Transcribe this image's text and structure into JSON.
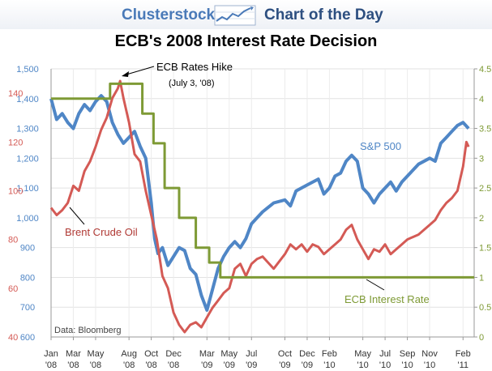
{
  "header": {
    "brand": "Clusterstock",
    "tagline": "Chart of the Day",
    "icon": "trend-chart-icon"
  },
  "colors": {
    "sp500": "#4f86c6",
    "brent": "#d45a55",
    "ecb": "#7e9a35",
    "brand": "#4a7ab8"
  },
  "chart_data": {
    "type": "line",
    "title": "ECB's 2008 Interest Rate Decision",
    "source": "Data: Bloomberg",
    "x_ticks": [
      {
        "t": 0,
        "m": "Jan",
        "y": "'08"
      },
      {
        "t": 2,
        "m": "Mar",
        "y": "'08"
      },
      {
        "t": 4,
        "m": "May",
        "y": "'08"
      },
      {
        "t": 7,
        "m": "Aug",
        "y": "'08"
      },
      {
        "t": 9,
        "m": "Oct",
        "y": "'08"
      },
      {
        "t": 11,
        "m": "Dec",
        "y": "'08"
      },
      {
        "t": 14,
        "m": "Mar",
        "y": "'09"
      },
      {
        "t": 16,
        "m": "May",
        "y": "'09"
      },
      {
        "t": 18,
        "m": "Jul",
        "y": "'09"
      },
      {
        "t": 21,
        "m": "Oct",
        "y": "'09"
      },
      {
        "t": 23,
        "m": "Dec",
        "y": "'09"
      },
      {
        "t": 25,
        "m": "Feb",
        "y": "'10"
      },
      {
        "t": 28,
        "m": "May",
        "y": "'10"
      },
      {
        "t": 30,
        "m": "Jul",
        "y": "'10"
      },
      {
        "t": 32,
        "m": "Sep",
        "y": "'10"
      },
      {
        "t": 34,
        "m": "Nov",
        "y": "'10"
      },
      {
        "t": 37,
        "m": "Feb",
        "y": "'11"
      }
    ],
    "x_range": [
      0,
      38
    ],
    "left_outer_axis": {
      "series": "S&P 500",
      "range": [
        600,
        1500
      ],
      "ticks": [
        "600",
        "700",
        "800",
        "900",
        "1,000",
        "1,100",
        "1,200",
        "1,300",
        "1,400",
        "1,500"
      ]
    },
    "left_inner_axis": {
      "series": "Brent Crude Oil",
      "range": [
        40,
        150
      ],
      "ticks": [
        "40",
        "60",
        "80",
        "100",
        "120",
        "140"
      ]
    },
    "right_axis": {
      "series": "ECB Interest Rate",
      "range": [
        0,
        4.5
      ],
      "ticks": [
        "0",
        "0.5",
        "1",
        "1.5",
        "2",
        "2.5",
        "3",
        "3.5",
        "4",
        "4.5"
      ]
    },
    "series": [
      {
        "name": "S&P 500",
        "axis": "left_outer",
        "points": [
          [
            0,
            1400
          ],
          [
            0.5,
            1330
          ],
          [
            1,
            1350
          ],
          [
            1.5,
            1320
          ],
          [
            2,
            1300
          ],
          [
            2.5,
            1350
          ],
          [
            3,
            1380
          ],
          [
            3.5,
            1360
          ],
          [
            4,
            1390
          ],
          [
            4.5,
            1410
          ],
          [
            5,
            1390
          ],
          [
            5.5,
            1320
          ],
          [
            6,
            1280
          ],
          [
            6.5,
            1250
          ],
          [
            7,
            1270
          ],
          [
            7.5,
            1290
          ],
          [
            8,
            1240
          ],
          [
            8.5,
            1200
          ],
          [
            9,
            1050
          ],
          [
            9.3,
            930
          ],
          [
            9.6,
            880
          ],
          [
            10,
            900
          ],
          [
            10.5,
            840
          ],
          [
            11,
            870
          ],
          [
            11.5,
            900
          ],
          [
            12,
            890
          ],
          [
            12.5,
            830
          ],
          [
            13,
            810
          ],
          [
            13.5,
            740
          ],
          [
            14,
            690
          ],
          [
            14.5,
            760
          ],
          [
            15,
            830
          ],
          [
            15.5,
            870
          ],
          [
            16,
            900
          ],
          [
            16.5,
            920
          ],
          [
            17,
            900
          ],
          [
            17.5,
            930
          ],
          [
            18,
            980
          ],
          [
            18.5,
            1000
          ],
          [
            19,
            1020
          ],
          [
            20,
            1050
          ],
          [
            21,
            1060
          ],
          [
            21.5,
            1040
          ],
          [
            22,
            1090
          ],
          [
            23,
            1110
          ],
          [
            24,
            1130
          ],
          [
            24.5,
            1080
          ],
          [
            25,
            1100
          ],
          [
            25.5,
            1140
          ],
          [
            26,
            1150
          ],
          [
            26.5,
            1190
          ],
          [
            27,
            1210
          ],
          [
            27.5,
            1190
          ],
          [
            28,
            1100
          ],
          [
            28.5,
            1080
          ],
          [
            29,
            1050
          ],
          [
            29.5,
            1080
          ],
          [
            30,
            1100
          ],
          [
            30.5,
            1120
          ],
          [
            31,
            1090
          ],
          [
            31.5,
            1120
          ],
          [
            32,
            1140
          ],
          [
            33,
            1180
          ],
          [
            34,
            1200
          ],
          [
            34.5,
            1190
          ],
          [
            35,
            1250
          ],
          [
            35.5,
            1270
          ],
          [
            36,
            1290
          ],
          [
            36.5,
            1310
          ],
          [
            37,
            1320
          ],
          [
            37.5,
            1300
          ]
        ]
      },
      {
        "name": "Brent Crude Oil",
        "axis": "left_inner",
        "points": [
          [
            0,
            93
          ],
          [
            0.5,
            90
          ],
          [
            1,
            92
          ],
          [
            1.5,
            95
          ],
          [
            2,
            102
          ],
          [
            2.5,
            100
          ],
          [
            3,
            108
          ],
          [
            3.5,
            112
          ],
          [
            4,
            118
          ],
          [
            4.5,
            125
          ],
          [
            5,
            130
          ],
          [
            5.5,
            138
          ],
          [
            6,
            142
          ],
          [
            6.2,
            145
          ],
          [
            6.5,
            138
          ],
          [
            7,
            128
          ],
          [
            7.5,
            115
          ],
          [
            8,
            112
          ],
          [
            8.5,
            100
          ],
          [
            9,
            90
          ],
          [
            9.5,
            80
          ],
          [
            10,
            65
          ],
          [
            10.5,
            60
          ],
          [
            11,
            50
          ],
          [
            11.5,
            45
          ],
          [
            12,
            42
          ],
          [
            12.5,
            45
          ],
          [
            13,
            46
          ],
          [
            13.5,
            44
          ],
          [
            14,
            48
          ],
          [
            14.5,
            52
          ],
          [
            15,
            55
          ],
          [
            15.5,
            58
          ],
          [
            16,
            60
          ],
          [
            16.5,
            68
          ],
          [
            17,
            70
          ],
          [
            17.5,
            65
          ],
          [
            18,
            70
          ],
          [
            18.5,
            72
          ],
          [
            19,
            73
          ],
          [
            20,
            68
          ],
          [
            21,
            74
          ],
          [
            21.5,
            78
          ],
          [
            22,
            76
          ],
          [
            22.5,
            78
          ],
          [
            23,
            75
          ],
          [
            23.5,
            78
          ],
          [
            24,
            77
          ],
          [
            24.5,
            74
          ],
          [
            25,
            76
          ],
          [
            25.5,
            78
          ],
          [
            26,
            80
          ],
          [
            26.5,
            84
          ],
          [
            27,
            86
          ],
          [
            27.5,
            80
          ],
          [
            28,
            76
          ],
          [
            28.5,
            72
          ],
          [
            29,
            76
          ],
          [
            29.5,
            75
          ],
          [
            30,
            78
          ],
          [
            30.5,
            74
          ],
          [
            31,
            76
          ],
          [
            31.5,
            78
          ],
          [
            32,
            80
          ],
          [
            33,
            82
          ],
          [
            34,
            86
          ],
          [
            34.5,
            88
          ],
          [
            35,
            92
          ],
          [
            35.5,
            95
          ],
          [
            36,
            97
          ],
          [
            36.5,
            100
          ],
          [
            37,
            110
          ],
          [
            37.3,
            120
          ],
          [
            37.5,
            118
          ]
        ]
      },
      {
        "name": "ECB Interest Rate",
        "axis": "right",
        "points": [
          [
            0,
            4
          ],
          [
            5.3,
            4
          ],
          [
            5.3,
            4.25
          ],
          [
            8.2,
            4.25
          ],
          [
            8.2,
            3.75
          ],
          [
            9.2,
            3.75
          ],
          [
            9.2,
            3.25
          ],
          [
            10.2,
            3.25
          ],
          [
            10.2,
            2.5
          ],
          [
            11.5,
            2.5
          ],
          [
            11.5,
            2
          ],
          [
            13,
            2
          ],
          [
            13,
            1.5
          ],
          [
            14.2,
            1.5
          ],
          [
            14.2,
            1.25
          ],
          [
            15.2,
            1.25
          ],
          [
            15.2,
            1
          ],
          [
            38,
            1
          ]
        ]
      }
    ],
    "annotations": {
      "hike_title": "ECB Rates Hike",
      "hike_date": "(July 3, '08)",
      "sp500_label": "S&P 500",
      "brent_label": "Brent Crude Oil",
      "ecb_label": "ECB Interest Rate"
    }
  }
}
